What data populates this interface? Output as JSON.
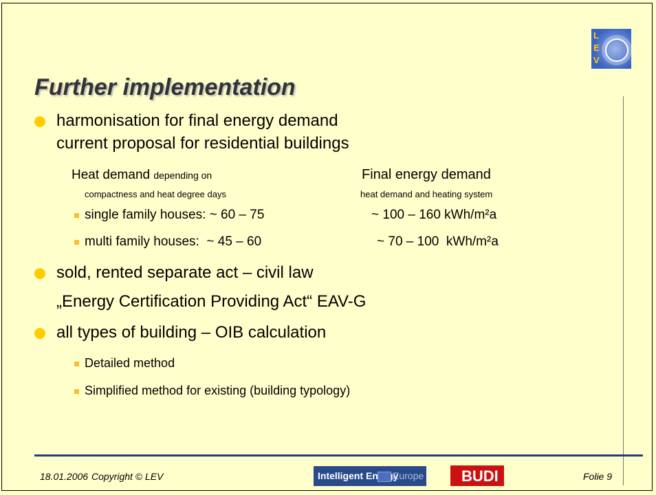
{
  "title": "Further implementation",
  "logo": {
    "letters": [
      "L",
      "E",
      "V"
    ]
  },
  "bullets": [
    {
      "lines": [
        "harmonisation for final energy demand",
        "current proposal for residential buildings"
      ],
      "heat_label": "Heat demand",
      "heat_note": "depending on",
      "heat_note2": "compactness and heat degree days",
      "final_label": "Final energy demand",
      "final_note": "heat demand and heating system",
      "rows": [
        [
          "single family houses: ~ 60 – 75",
          "~ 100 – 160 kWh/m²a"
        ],
        [
          "multi family houses:  ~ 45 – 60",
          "~ 70 – 100  kWh/m²a"
        ]
      ]
    },
    {
      "lines": [
        "sold, rented separate act – civil law",
        "„Energy Certification Providing Act“ EAV-G"
      ]
    },
    {
      "lines": [
        "all types of building – OIB calculation"
      ],
      "sub": [
        "Detailed method",
        "Simplified method for existing (building typology)"
      ]
    }
  ],
  "footer": {
    "date": "18.01.2006",
    "copyright": "Copyright © LEV",
    "ie": "Intelligent Energy",
    "europe": "Europe",
    "budi": "BUDI",
    "folie": "Folie 9"
  }
}
